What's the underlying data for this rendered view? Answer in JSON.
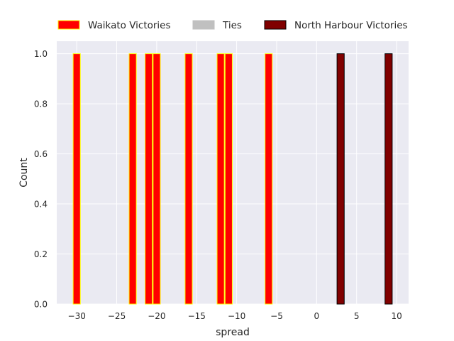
{
  "chart_data": {
    "type": "bar",
    "xlabel": "spread",
    "ylabel": "Count",
    "xlim": [
      -32.5,
      11.5
    ],
    "ylim": [
      0,
      1.05
    ],
    "xticks": [
      -30,
      -25,
      -20,
      -15,
      -10,
      -5,
      0,
      5,
      10
    ],
    "xtick_labels": [
      "−30",
      "−25",
      "−20",
      "−15",
      "−10",
      "−5",
      "0",
      "5",
      "10"
    ],
    "yticks": [
      0,
      0.2,
      0.4,
      0.6,
      0.8,
      1.0
    ],
    "ytick_labels": [
      "0.0",
      "0.2",
      "0.4",
      "0.6",
      "0.8",
      "1.0"
    ],
    "bin_width": 0.9,
    "grid": true,
    "legend_position": "top, above plot",
    "background_color": "#eaeaf2",
    "series": [
      {
        "name": "Waikato Victories",
        "fill": "#ff0000",
        "edge": "#ffff00",
        "x": [
          -30,
          -23,
          -21,
          -20,
          -16,
          -12,
          -11,
          -6
        ],
        "values": [
          1,
          1,
          1,
          1,
          1,
          1,
          1,
          1
        ]
      },
      {
        "name": "Ties",
        "fill": "#c0c0c0",
        "edge": "#c0c0c0",
        "x": [],
        "values": []
      },
      {
        "name": "North Harbour Victories",
        "fill": "#800000",
        "edge": "#000000",
        "x": [
          3,
          9
        ],
        "values": [
          1,
          1
        ]
      }
    ]
  }
}
